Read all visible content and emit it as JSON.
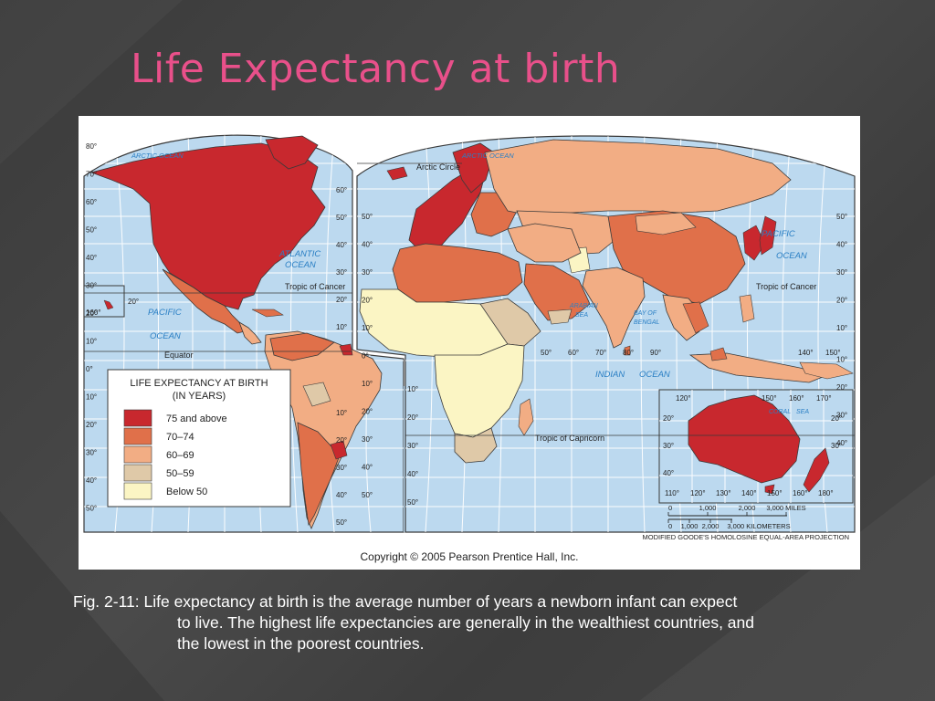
{
  "slide": {
    "title": "Life Expectancy at birth",
    "caption_line1": "Fig. 2-11: Life expectancy at birth is the average number of years a newborn infant can expect",
    "caption_line2": "to live. The highest life expectancies are generally in the wealthiest countries, and",
    "caption_line3": "the lowest in the poorest countries."
  },
  "map": {
    "copyright": "Copyright © 2005 Pearson Prentice Hall, Inc.",
    "projection": "MODIFIED GOODE'S HOMOLOSINE EQUAL-AREA PROJECTION",
    "colors": {
      "ocean": "#bcd9ef",
      "grid": "#ffffff",
      "border": "#3a3a3a"
    },
    "legend": {
      "title_line1": "LIFE EXPECTANCY AT BIRTH",
      "title_line2": "(IN YEARS)",
      "items": [
        {
          "label": "75 and above",
          "color": "#c8282e"
        },
        {
          "label": "70–74",
          "color": "#e0704a"
        },
        {
          "label": "60–69",
          "color": "#f2ad84"
        },
        {
          "label": "50–59",
          "color": "#dfc9a8"
        },
        {
          "label": "Below 50",
          "color": "#fbf5c4"
        }
      ]
    },
    "ocean_labels": {
      "arctic_left": "ARCTIC OCEAN",
      "arctic_right": "ARCTIC OCEAN",
      "atlantic_1": "ATLANTIC",
      "atlantic_2": "OCEAN",
      "pacific_left_1": "PACIFIC",
      "pacific_left_2": "OCEAN",
      "pacific_right_1": "PACIFIC",
      "pacific_right_2": "OCEAN",
      "indian_1": "INDIAN",
      "indian_2": "OCEAN",
      "arabian_1": "ARABIAN",
      "arabian_2": "SEA",
      "bengal_1": "BAY OF",
      "bengal_2": "BENGAL",
      "coral_1": "CORAL",
      "coral_2": "SEA"
    },
    "line_labels": {
      "arctic_circle": "Arctic Circle",
      "cancer_left": "Tropic of Cancer",
      "cancer_right": "Tropic of Cancer",
      "equator": "Equator",
      "capricorn": "Tropic of Capricorn"
    },
    "scale": {
      "miles_ticks": [
        "0",
        "1,000",
        "2,000",
        "3,000 MILES"
      ],
      "km_ticks": [
        "0",
        "1,000",
        "2,000",
        "3,000 KILOMETERS"
      ]
    },
    "graticule": {
      "left_lat": [
        "80°",
        "70°",
        "60°",
        "50°",
        "40°",
        "30°",
        "20°",
        "10°",
        "0°",
        "10°",
        "20°",
        "30°",
        "40°",
        "50°"
      ],
      "mid_lat": [
        "60°",
        "50°",
        "40°",
        "30°",
        "20°",
        "10°",
        "10°",
        "20°",
        "30°",
        "40°",
        "50°"
      ],
      "mid_lat2": [
        "50°",
        "40°",
        "30°",
        "20°",
        "10°",
        "0°",
        "10°",
        "20°",
        "30°",
        "40°",
        "50°"
      ],
      "right_lat": [
        "50°",
        "40°",
        "30°",
        "20°",
        "10°",
        "10°",
        "20°",
        "30°",
        "40°"
      ],
      "inner_lat": [
        "10°",
        "20°",
        "30°",
        "40°",
        "50°"
      ],
      "lon_mid": [
        "50°",
        "60°",
        "70°",
        "80°",
        "90°"
      ],
      "lon_pac": [
        "140°",
        "150°"
      ],
      "inset_lon_top": [
        "120°",
        "150°",
        "160°",
        "170°"
      ],
      "inset_lon_bottom": [
        "110°",
        "120°",
        "130°",
        "140°",
        "150°",
        "160°",
        "180°"
      ],
      "inset_lat": [
        "20°",
        "30°",
        "40°",
        "20°",
        "30°"
      ],
      "hawaii_lon": "160°",
      "hawaii_lat": "20°"
    }
  }
}
